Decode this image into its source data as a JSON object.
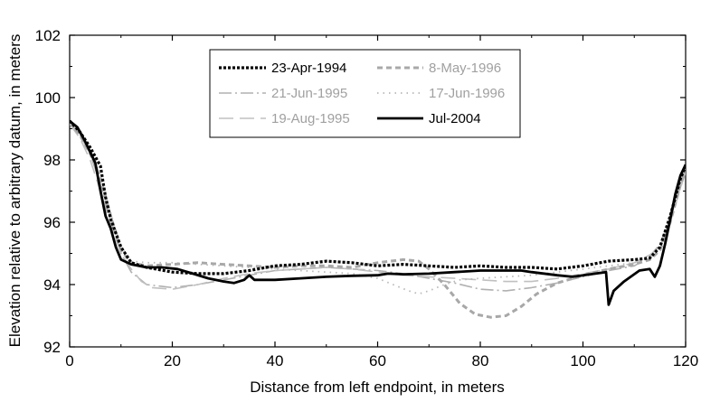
{
  "chart_data": {
    "type": "line",
    "title": "",
    "xlabel": "Distance from left endpoint, in meters",
    "ylabel": "Elevation relative to arbitrary datum, in meters",
    "xlim": [
      0,
      120
    ],
    "ylim": [
      92,
      102
    ],
    "x_ticks": [
      "0",
      "20",
      "40",
      "60",
      "80",
      "100",
      "120"
    ],
    "y_ticks": [
      "92",
      "94",
      "96",
      "98",
      "100",
      "102"
    ],
    "x_tick_values": [
      0,
      20,
      40,
      60,
      80,
      100,
      120
    ],
    "y_tick_values": [
      92,
      94,
      96,
      98,
      100,
      102
    ],
    "grid": false,
    "legend_position": "top-center",
    "series": [
      {
        "name": "23-Apr-1994",
        "color": "#000000",
        "style": "dotted-bold",
        "points": [
          [
            0,
            99.25
          ],
          [
            2,
            98.9
          ],
          [
            4,
            98.4
          ],
          [
            6,
            97.8
          ],
          [
            7,
            96.8
          ],
          [
            8,
            96.1
          ],
          [
            10,
            95.2
          ],
          [
            12,
            94.7
          ],
          [
            15,
            94.55
          ],
          [
            20,
            94.4
          ],
          [
            25,
            94.35
          ],
          [
            30,
            94.35
          ],
          [
            35,
            94.45
          ],
          [
            40,
            94.6
          ],
          [
            45,
            94.65
          ],
          [
            50,
            94.75
          ],
          [
            55,
            94.7
          ],
          [
            60,
            94.6
          ],
          [
            65,
            94.65
          ],
          [
            70,
            94.6
          ],
          [
            75,
            94.55
          ],
          [
            80,
            94.6
          ],
          [
            85,
            94.55
          ],
          [
            90,
            94.55
          ],
          [
            95,
            94.5
          ],
          [
            100,
            94.6
          ],
          [
            105,
            94.75
          ],
          [
            110,
            94.8
          ],
          [
            113,
            94.85
          ],
          [
            115,
            95.2
          ],
          [
            117,
            96.2
          ],
          [
            119,
            97.4
          ],
          [
            120,
            97.8
          ]
        ]
      },
      {
        "name": "21-Jun-1995",
        "color": "#b0b0b0",
        "style": "dash-dot",
        "points": [
          [
            0,
            99.2
          ],
          [
            2,
            98.8
          ],
          [
            4,
            98.2
          ],
          [
            6,
            97.2
          ],
          [
            8,
            96.0
          ],
          [
            10,
            95.0
          ],
          [
            12,
            94.4
          ],
          [
            15,
            94.0
          ],
          [
            20,
            93.9
          ],
          [
            25,
            94.0
          ],
          [
            30,
            94.15
          ],
          [
            35,
            94.3
          ],
          [
            40,
            94.45
          ],
          [
            45,
            94.5
          ],
          [
            50,
            94.55
          ],
          [
            55,
            94.5
          ],
          [
            60,
            94.45
          ],
          [
            65,
            94.35
          ],
          [
            70,
            94.2
          ],
          [
            75,
            94.05
          ],
          [
            80,
            93.85
          ],
          [
            85,
            93.8
          ],
          [
            90,
            93.9
          ],
          [
            95,
            94.05
          ],
          [
            100,
            94.25
          ],
          [
            105,
            94.45
          ],
          [
            110,
            94.6
          ],
          [
            113,
            94.9
          ],
          [
            115,
            95.3
          ],
          [
            117,
            96.1
          ],
          [
            119,
            97.2
          ],
          [
            120,
            97.7
          ]
        ]
      },
      {
        "name": "19-Aug-1995",
        "color": "#c0c0c0",
        "style": "long-dash",
        "points": [
          [
            0,
            99.15
          ],
          [
            2,
            98.7
          ],
          [
            4,
            98.0
          ],
          [
            6,
            97.0
          ],
          [
            8,
            95.9
          ],
          [
            10,
            95.0
          ],
          [
            12,
            94.5
          ],
          [
            14,
            94.1
          ],
          [
            16,
            93.9
          ],
          [
            20,
            93.85
          ],
          [
            25,
            94.0
          ],
          [
            30,
            94.2
          ],
          [
            35,
            94.35
          ],
          [
            40,
            94.45
          ],
          [
            45,
            94.5
          ],
          [
            50,
            94.55
          ],
          [
            55,
            94.5
          ],
          [
            60,
            94.4
          ],
          [
            65,
            94.3
          ],
          [
            70,
            94.25
          ],
          [
            75,
            94.2
          ],
          [
            80,
            94.15
          ],
          [
            85,
            94.1
          ],
          [
            90,
            94.1
          ],
          [
            95,
            94.2
          ],
          [
            100,
            94.35
          ],
          [
            105,
            94.5
          ],
          [
            110,
            94.7
          ],
          [
            113,
            94.95
          ],
          [
            115,
            95.2
          ],
          [
            117,
            96.0
          ],
          [
            119,
            97.1
          ],
          [
            120,
            97.6
          ]
        ]
      },
      {
        "name": "8-May-1996",
        "color": "#a8a8a8",
        "style": "bold-dash",
        "points": [
          [
            0,
            99.2
          ],
          [
            2,
            98.8
          ],
          [
            4,
            98.2
          ],
          [
            6,
            97.4
          ],
          [
            8,
            96.2
          ],
          [
            10,
            95.1
          ],
          [
            12,
            94.7
          ],
          [
            15,
            94.6
          ],
          [
            20,
            94.65
          ],
          [
            25,
            94.7
          ],
          [
            30,
            94.65
          ],
          [
            35,
            94.6
          ],
          [
            40,
            94.55
          ],
          [
            45,
            94.6
          ],
          [
            50,
            94.6
          ],
          [
            55,
            94.55
          ],
          [
            60,
            94.7
          ],
          [
            65,
            94.8
          ],
          [
            68,
            94.75
          ],
          [
            70,
            94.5
          ],
          [
            73,
            94.0
          ],
          [
            76,
            93.4
          ],
          [
            79,
            93.05
          ],
          [
            82,
            92.95
          ],
          [
            85,
            93.0
          ],
          [
            88,
            93.3
          ],
          [
            91,
            93.7
          ],
          [
            95,
            94.05
          ],
          [
            100,
            94.3
          ],
          [
            105,
            94.5
          ],
          [
            110,
            94.65
          ],
          [
            113,
            94.8
          ],
          [
            115,
            95.1
          ],
          [
            117,
            96.0
          ],
          [
            119,
            97.2
          ],
          [
            120,
            97.7
          ]
        ]
      },
      {
        "name": "17-Jun-1996",
        "color": "#b8b8b8",
        "style": "dotted",
        "points": [
          [
            0,
            99.2
          ],
          [
            2,
            98.8
          ],
          [
            4,
            98.3
          ],
          [
            6,
            97.5
          ],
          [
            8,
            96.3
          ],
          [
            10,
            95.2
          ],
          [
            12,
            94.75
          ],
          [
            15,
            94.7
          ],
          [
            20,
            94.7
          ],
          [
            25,
            94.65
          ],
          [
            30,
            94.6
          ],
          [
            35,
            94.55
          ],
          [
            40,
            94.5
          ],
          [
            45,
            94.45
          ],
          [
            50,
            94.4
          ],
          [
            55,
            94.35
          ],
          [
            60,
            94.2
          ],
          [
            63,
            94.0
          ],
          [
            66,
            93.8
          ],
          [
            68,
            93.7
          ],
          [
            70,
            93.8
          ],
          [
            73,
            94.0
          ],
          [
            76,
            94.15
          ],
          [
            80,
            94.2
          ],
          [
            85,
            94.25
          ],
          [
            90,
            94.3
          ],
          [
            95,
            94.4
          ],
          [
            100,
            94.5
          ],
          [
            105,
            94.6
          ],
          [
            110,
            94.7
          ],
          [
            113,
            94.85
          ],
          [
            115,
            95.2
          ],
          [
            117,
            96.1
          ],
          [
            119,
            97.3
          ],
          [
            120,
            97.7
          ]
        ]
      },
      {
        "name": "Jul-2004",
        "color": "#000000",
        "style": "solid-bold",
        "points": [
          [
            0,
            99.25
          ],
          [
            1.5,
            99.05
          ],
          [
            3,
            98.6
          ],
          [
            5,
            97.9
          ],
          [
            6,
            97.0
          ],
          [
            7,
            96.2
          ],
          [
            8,
            95.8
          ],
          [
            9,
            95.2
          ],
          [
            10,
            94.8
          ],
          [
            12,
            94.65
          ],
          [
            15,
            94.55
          ],
          [
            18,
            94.55
          ],
          [
            21,
            94.5
          ],
          [
            24,
            94.35
          ],
          [
            27,
            94.2
          ],
          [
            30,
            94.1
          ],
          [
            32,
            94.05
          ],
          [
            34,
            94.15
          ],
          [
            35,
            94.3
          ],
          [
            36,
            94.15
          ],
          [
            40,
            94.15
          ],
          [
            45,
            94.2
          ],
          [
            50,
            94.25
          ],
          [
            55,
            94.28
          ],
          [
            60,
            94.3
          ],
          [
            62,
            94.35
          ],
          [
            65,
            94.33
          ],
          [
            70,
            94.35
          ],
          [
            75,
            94.4
          ],
          [
            80,
            94.45
          ],
          [
            85,
            94.45
          ],
          [
            88,
            94.45
          ],
          [
            90,
            94.4
          ],
          [
            95,
            94.3
          ],
          [
            98,
            94.25
          ],
          [
            100,
            94.3
          ],
          [
            104.5,
            94.4
          ],
          [
            105,
            93.35
          ],
          [
            106,
            93.8
          ],
          [
            108,
            94.1
          ],
          [
            111,
            94.45
          ],
          [
            113,
            94.5
          ],
          [
            114,
            94.25
          ],
          [
            115,
            94.6
          ],
          [
            116,
            95.3
          ],
          [
            117,
            96.1
          ],
          [
            118,
            96.9
          ],
          [
            119,
            97.5
          ],
          [
            120,
            97.85
          ]
        ]
      }
    ]
  }
}
